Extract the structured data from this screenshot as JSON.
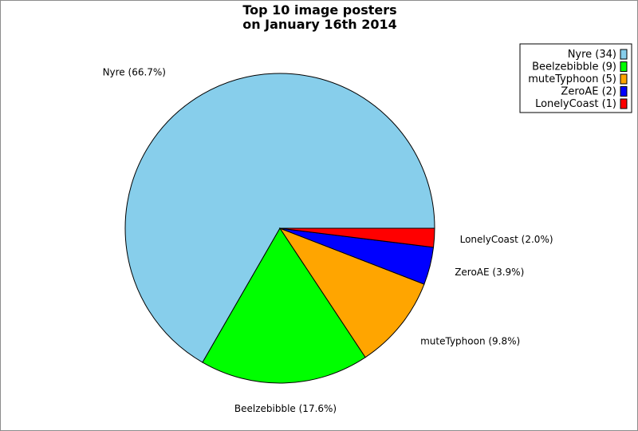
{
  "chart_data": {
    "type": "pie",
    "title_lines": [
      "Top 10 image posters",
      "on January 16th 2014"
    ],
    "slices": [
      {
        "name": "Nyre",
        "count": 34,
        "percent": 66.7,
        "color": "#87ceeb",
        "label": "Nyre (66.7%)",
        "legend": "Nyre (34)"
      },
      {
        "name": "Beelzebibble",
        "count": 9,
        "percent": 17.6,
        "color": "#00ff00",
        "label": "Beelzebibble (17.6%)",
        "legend": "Beelzebibble (9)"
      },
      {
        "name": "muteTyphoon",
        "count": 5,
        "percent": 9.8,
        "color": "#ffa500",
        "label": "muteTyphoon (9.8%)",
        "legend": "muteTyphoon (5)"
      },
      {
        "name": "ZeroAE",
        "count": 2,
        "percent": 3.9,
        "color": "#0000ff",
        "label": "ZeroAE (3.9%)",
        "legend": "ZeroAE (2)"
      },
      {
        "name": "LonelyCoast",
        "count": 1,
        "percent": 2.0,
        "color": "#ff0000",
        "label": "LonelyCoast (2.0%)",
        "legend": "LonelyCoast (1)"
      }
    ],
    "legend_position": "top-right",
    "direction": "counterclockwise-from-east"
  }
}
